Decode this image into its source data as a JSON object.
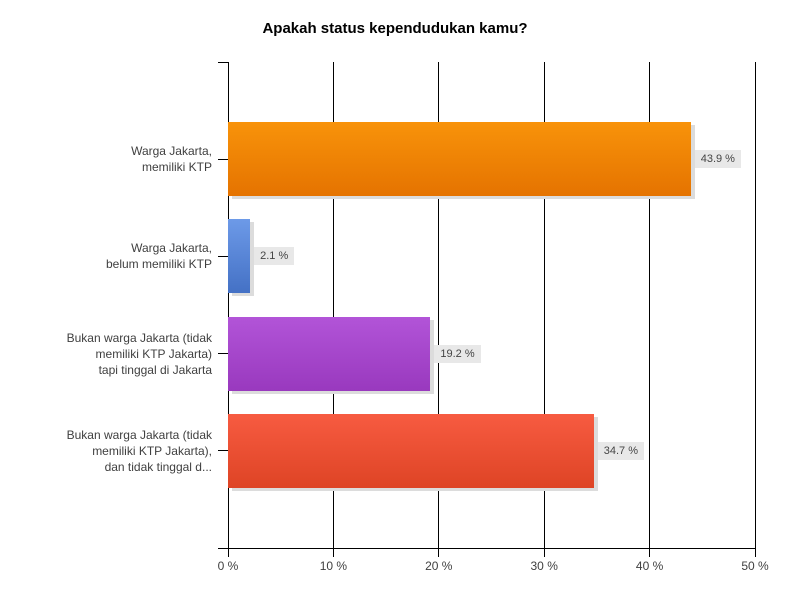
{
  "chart_data": {
    "type": "bar",
    "orientation": "horizontal",
    "title": "Apakah status kependudukan kamu?",
    "categories": [
      [
        "Warga Jakarta,",
        "memiliki KTP"
      ],
      [
        "Warga Jakarta,",
        "belum memiliki KTP"
      ],
      [
        "Bukan warga Jakarta (tidak",
        "memiliki KTP Jakarta)",
        "tapi tinggal di Jakarta"
      ],
      [
        "Bukan warga Jakarta (tidak",
        "memiliki KTP Jakarta),",
        "dan tidak tinggal d..."
      ]
    ],
    "values": [
      43.9,
      2.1,
      19.2,
      34.7
    ],
    "value_labels": [
      "43.9 %",
      "2.1 %",
      "19.2 %",
      "34.7 %"
    ],
    "bar_colors": [
      {
        "name": "orange",
        "top": "#F8930A",
        "bottom": "#E57300"
      },
      {
        "name": "blue",
        "top": "#6D9AE8",
        "bottom": "#4471C5"
      },
      {
        "name": "purple",
        "top": "#B254D8",
        "bottom": "#9939BE"
      },
      {
        "name": "red",
        "top": "#F75B41",
        "bottom": "#DE4425"
      }
    ],
    "xlim": [
      0,
      50
    ],
    "x_ticks": [
      0,
      10,
      20,
      30,
      40,
      50
    ],
    "x_tick_labels": [
      "0 %",
      "10 %",
      "20 %",
      "30 %",
      "40 %",
      "50 %"
    ],
    "grid": true,
    "legend": "none",
    "colors": {
      "background": "#FFFFFF",
      "axis": "#000000",
      "title_text": "#000000",
      "label_text": "#404040",
      "value_label_bg": "#E8E8E8",
      "value_label_text": "#444444",
      "bar_shadow": "#DCDCDC"
    }
  }
}
